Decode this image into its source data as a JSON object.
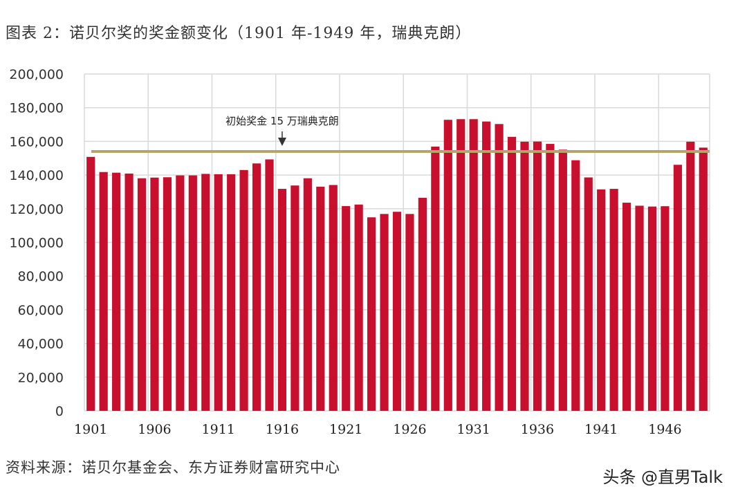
{
  "title": "图表 2：诺贝尔奖的奖金额变化（1901 年-1949 年，瑞典克朗）",
  "source": "资料来源：诺贝尔基金会、东方证券财富研究中心",
  "watermark": "头条 @直男Talk",
  "colors": {
    "bar": "#c8102e",
    "reference_line": "#b5a46e",
    "grid": "#d9d9d9"
  },
  "chart_data": {
    "type": "bar",
    "title": "图表 2：诺贝尔奖的奖金额变化（1901 年-1949 年，瑞典克朗）",
    "xlabel": "",
    "ylabel": "",
    "ylim": [
      0,
      200000
    ],
    "y_ticks": [
      "0",
      "20,000",
      "40,000",
      "60,000",
      "80,000",
      "100,000",
      "120,000",
      "140,000",
      "160,000",
      "180,000",
      "200,000"
    ],
    "x_tick_labels": [
      "1901",
      "1906",
      "1911",
      "1916",
      "1921",
      "1926",
      "1931",
      "1936",
      "1941",
      "1946"
    ],
    "grid": true,
    "legend": "none",
    "categories": [
      1901,
      1902,
      1903,
      1904,
      1905,
      1906,
      1907,
      1908,
      1909,
      1910,
      1911,
      1912,
      1913,
      1914,
      1915,
      1916,
      1917,
      1918,
      1919,
      1920,
      1921,
      1922,
      1923,
      1924,
      1925,
      1926,
      1927,
      1928,
      1929,
      1930,
      1931,
      1932,
      1933,
      1934,
      1935,
      1936,
      1937,
      1938,
      1939,
      1940,
      1941,
      1942,
      1943,
      1944,
      1945,
      1946,
      1947,
      1948,
      1949
    ],
    "values": [
      150800,
      141800,
      141400,
      140900,
      138100,
      138500,
      138700,
      139800,
      139800,
      140700,
      140500,
      140500,
      143000,
      146900,
      149300,
      131800,
      133800,
      138100,
      133100,
      134100,
      121600,
      122500,
      114900,
      116900,
      118200,
      116900,
      126500,
      156900,
      172800,
      173200,
      173200,
      171800,
      170300,
      162700,
      159800,
      159900,
      158500,
      155100,
      148800,
      138600,
      131500,
      131800,
      123600,
      121800,
      121300,
      121500,
      146100,
      159800,
      156300
    ],
    "reference_line": {
      "value": 154000,
      "label": "初始奖金 15 万瑞典克朗",
      "arrow_category": 1916
    }
  }
}
